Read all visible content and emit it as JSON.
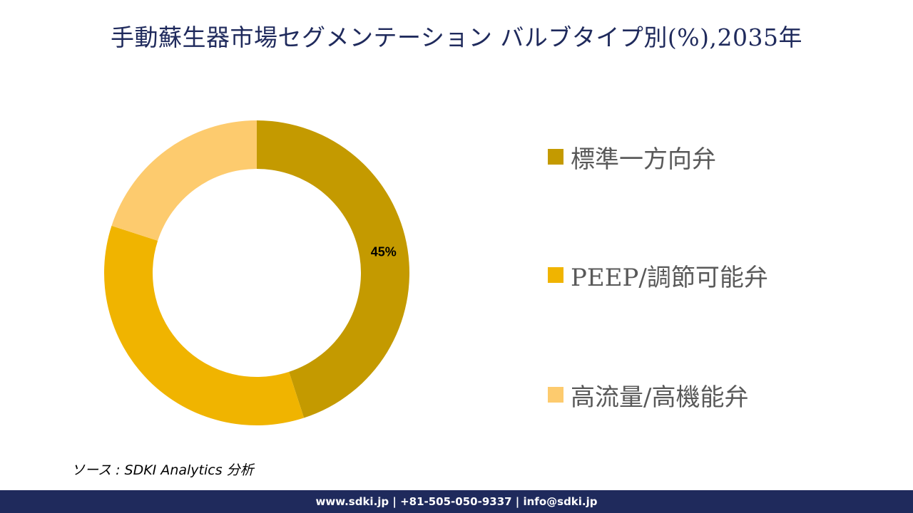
{
  "title": "手動蘇生器市場セグメンテーション バルブタイプ別(%),2035年",
  "chart_data": {
    "type": "pie",
    "variant": "donut",
    "categories": [
      "標準一方向弁",
      "PEEP/調節可能弁",
      "高流量/高機能弁"
    ],
    "values": [
      45,
      35,
      20
    ],
    "colors": [
      "#c49a00",
      "#f0b400",
      "#fdcb6e"
    ],
    "data_labels": [
      "45%",
      "",
      ""
    ],
    "legend_position": "right"
  },
  "legend": {
    "items": [
      {
        "label": "標準一方向弁",
        "color": "#c49a00"
      },
      {
        "label": "PEEP/調節可能弁",
        "color": "#f0b400"
      },
      {
        "label": "高流量/高機能弁",
        "color": "#fdcb6e"
      }
    ]
  },
  "source": "ソース : SDKI Analytics 分析",
  "footer": "www.sdki.jp | +81-505-050-9337 | info@sdki.jp"
}
